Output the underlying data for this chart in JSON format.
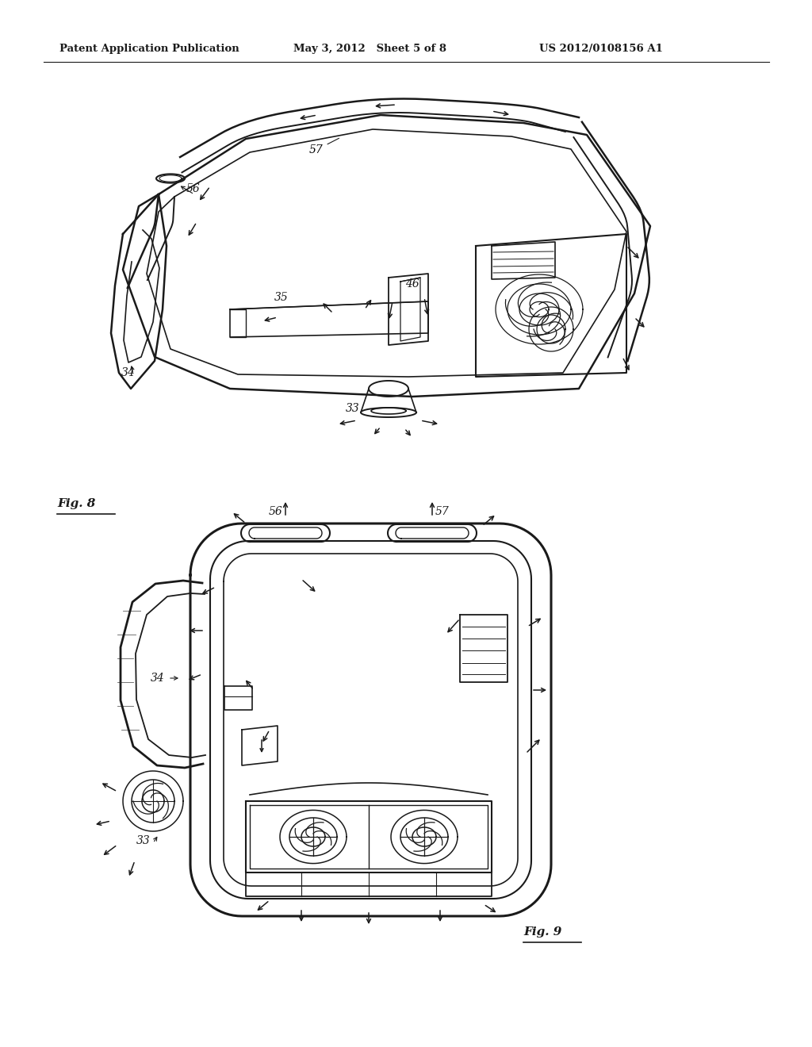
{
  "header_left": "Patent Application Publication",
  "header_mid": "May 3, 2012   Sheet 5 of 8",
  "header_right": "US 2012/0108156 A1",
  "fig8_label": "Fig. 8",
  "fig9_label": "Fig. 9",
  "bg_color": "#ffffff",
  "text_color": "#000000",
  "line_color": "#1a1a1a",
  "header_fontsize": 9.5,
  "fig_label_fontsize": 11,
  "ref_fontsize": 10,
  "anno_fontsize": 9
}
